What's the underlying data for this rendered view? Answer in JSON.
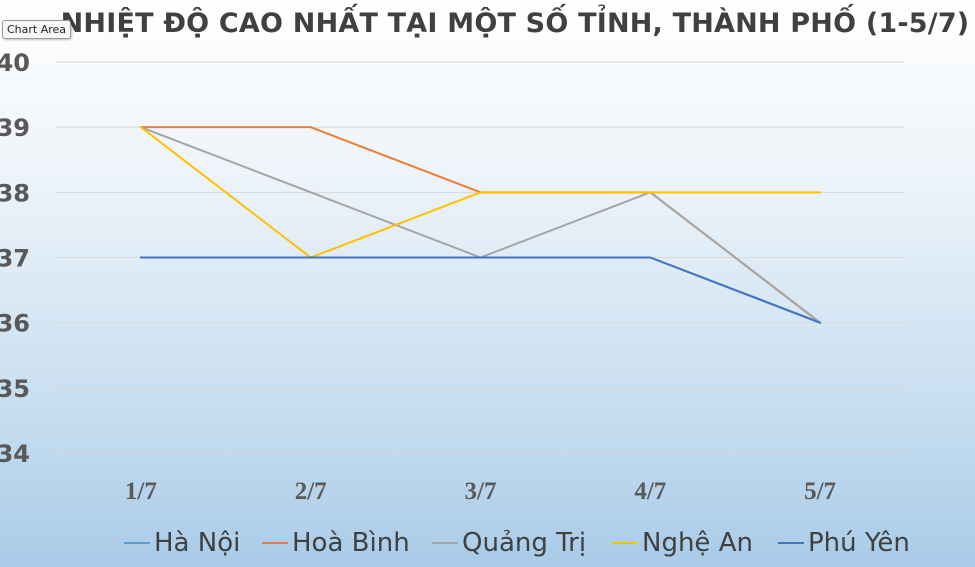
{
  "tooltip": {
    "label": "Chart Area"
  },
  "chart_data": {
    "type": "line",
    "title": "NHIỆT ĐỘ CAO NHẤT TẠI MỘT SỐ TỈNH, THÀNH PHỐ (1-5/7)",
    "xlabel": "",
    "ylabel": "",
    "categories": [
      "1/7",
      "2/7",
      "3/7",
      "4/7",
      "5/7"
    ],
    "ylim": [
      34,
      40
    ],
    "yticks": [
      34,
      35,
      36,
      37,
      38,
      39,
      40
    ],
    "grid": true,
    "legend_position": "bottom",
    "series": [
      {
        "name": "Hà Nội",
        "color": "#5b9bd5",
        "values": [
          37,
          37,
          37,
          37,
          36
        ]
      },
      {
        "name": "Hoà Bình",
        "color": "#ed7d31",
        "values": [
          39,
          39,
          38,
          38,
          36
        ]
      },
      {
        "name": "Quảng Trị",
        "color": "#a5a5a5",
        "values": [
          39,
          38,
          37,
          38,
          36
        ]
      },
      {
        "name": "Nghệ An",
        "color": "#ffc000",
        "values": [
          39,
          37,
          38,
          38,
          38
        ]
      },
      {
        "name": "Phú Yên",
        "color": "#4472c4",
        "values": [
          37,
          37,
          37,
          37,
          36
        ]
      }
    ]
  }
}
